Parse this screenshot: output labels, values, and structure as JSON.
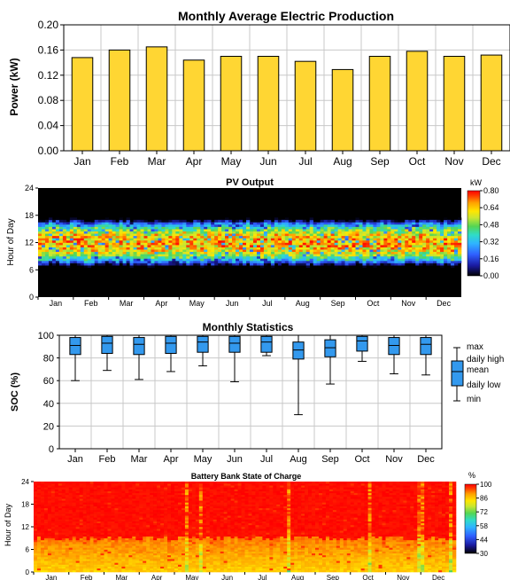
{
  "chart_data": [
    {
      "type": "bar",
      "title": "Monthly Average Electric Production",
      "xlabel": "",
      "ylabel": "Power (kW)",
      "ylim": [
        0,
        0.2
      ],
      "yticks": [
        "0.00",
        "0.04",
        "0.08",
        "0.12",
        "0.16",
        "0.20"
      ],
      "categories": [
        "Jan",
        "Feb",
        "Mar",
        "Apr",
        "May",
        "Jun",
        "Jul",
        "Aug",
        "Sep",
        "Oct",
        "Nov",
        "Dec"
      ],
      "values": [
        0.148,
        0.16,
        0.165,
        0.144,
        0.15,
        0.15,
        0.142,
        0.129,
        0.15,
        0.158,
        0.15,
        0.152
      ],
      "bar_color": "#FFD633",
      "grid": true
    },
    {
      "type": "heatmap",
      "title": "PV Output",
      "ylabel": "Hour of Day",
      "yticks": [
        "0",
        "6",
        "12",
        "18",
        "24"
      ],
      "months": [
        "Jan",
        "Feb",
        "Mar",
        "Apr",
        "May",
        "Jun",
        "Jul",
        "Aug",
        "Sep",
        "Oct",
        "Nov",
        "Dec"
      ],
      "colorbar_unit": "kW",
      "colorbar_ticks": [
        "0.80",
        "0.64",
        "0.48",
        "0.32",
        "0.16",
        "0.00"
      ],
      "colorscale": [
        "#000000",
        "#1a1aa0",
        "#2f5fff",
        "#2fb4ff",
        "#2fdcc8",
        "#54d554",
        "#c8e632",
        "#ffe600",
        "#ffa000",
        "#ff3c00",
        "#ff0000"
      ],
      "daylight_hours": [
        7,
        17
      ],
      "peak_hours": [
        10,
        14
      ]
    },
    {
      "type": "boxplot",
      "title": "Monthly Statistics",
      "ylabel": "SOC (%)",
      "ylim": [
        0,
        100
      ],
      "yticks": [
        "0",
        "20",
        "40",
        "60",
        "80",
        "100"
      ],
      "categories": [
        "Jan",
        "Feb",
        "Mar",
        "Apr",
        "May",
        "Jun",
        "Jul",
        "Aug",
        "Sep",
        "Oct",
        "Nov",
        "Dec"
      ],
      "min": [
        60,
        69,
        61,
        68,
        73,
        59,
        82,
        30,
        57,
        77,
        66,
        65
      ],
      "daily_low": [
        83,
        84,
        83,
        84,
        85,
        85,
        85,
        79,
        81,
        86,
        83,
        83
      ],
      "mean": [
        91,
        93,
        92,
        93,
        94,
        93,
        94,
        87,
        89,
        95,
        91,
        92
      ],
      "daily_high": [
        98,
        99,
        98,
        99,
        99,
        99,
        99,
        94,
        96,
        99,
        98,
        98
      ],
      "max": [
        100,
        100,
        100,
        100,
        100,
        100,
        100,
        100,
        100,
        100,
        100,
        100
      ],
      "legend": [
        "max",
        "daily high",
        "mean",
        "daily low",
        "min"
      ],
      "box_color": "#3399EE",
      "grid": true
    },
    {
      "type": "heatmap",
      "title": "Battery Bank State of Charge",
      "ylabel": "Hour of Day",
      "yticks": [
        "0",
        "6",
        "12",
        "18",
        "24"
      ],
      "months": [
        "Jan",
        "Feb",
        "Mar",
        "Apr",
        "May",
        "Jun",
        "Jul",
        "Aug",
        "Sep",
        "Oct",
        "Nov",
        "Dec"
      ],
      "colorbar_unit": "%",
      "colorbar_ticks": [
        "100",
        "86",
        "72",
        "58",
        "44",
        "30"
      ],
      "colorscale": [
        "#000000",
        "#1a1aa0",
        "#2f5fff",
        "#2fb4ff",
        "#54d554",
        "#c8e632",
        "#ffe600",
        "#ffa000",
        "#ff3c00",
        "#ff0000"
      ],
      "full_from_hour": 9
    }
  ]
}
